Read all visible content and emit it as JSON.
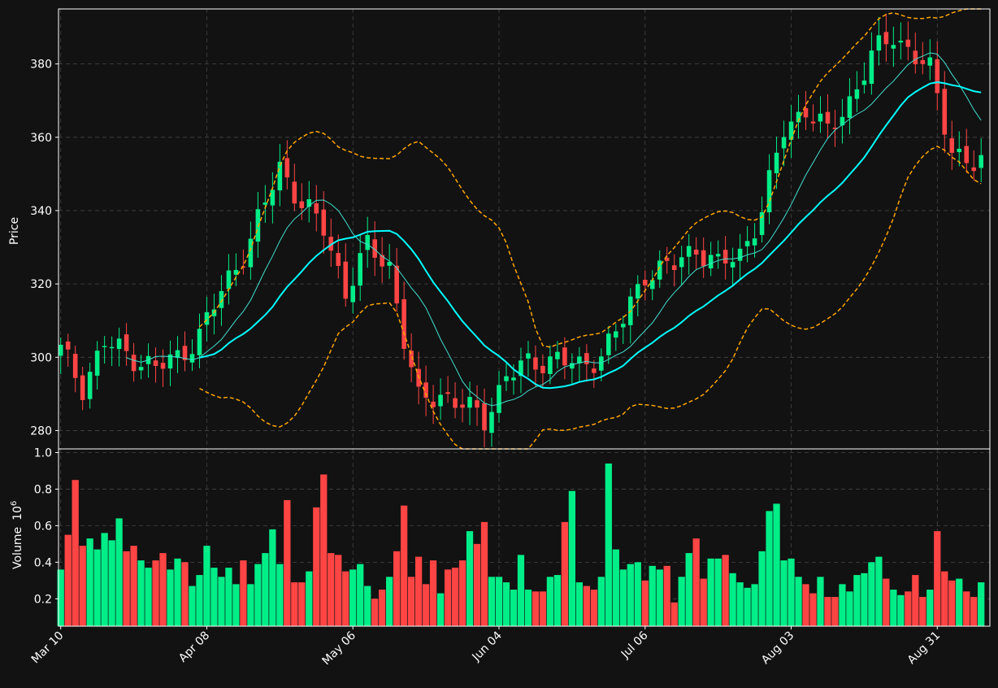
{
  "colors": {
    "background": "#121212",
    "up": "#00ee88",
    "down": "#ff4444",
    "ma_fast": "#40e0d0",
    "ma_slow": "#00ffff",
    "bollinger": "#ffa500",
    "grid": "#444444",
    "axis": "#ffffff"
  },
  "chart_data": {
    "type": "candlestick",
    "price_axis": {
      "label": "Price",
      "ylim": [
        275,
        395
      ],
      "ticks": [
        "280",
        "300",
        "320",
        "340",
        "360",
        "380"
      ]
    },
    "volume_axis": {
      "label": "Volume",
      "multiplier": "10",
      "exponent": "6",
      "ylim": [
        0.05,
        1.02
      ],
      "ticks": [
        "0.2",
        "0.4",
        "0.6",
        "0.8",
        "1.0"
      ]
    },
    "x_ticks": [
      {
        "label": "Mar 10",
        "index": 0
      },
      {
        "label": "Apr 08",
        "index": 20
      },
      {
        "label": "May 06",
        "index": 40
      },
      {
        "label": "Jun 04",
        "index": 60
      },
      {
        "label": "Jul 06",
        "index": 80
      },
      {
        "label": "Aug 03",
        "index": 100
      },
      {
        "label": "Aug 31",
        "index": 120
      }
    ],
    "grid": true,
    "candles_anchor": [
      [
        0,
        302
      ],
      [
        3,
        292
      ],
      [
        6,
        304
      ],
      [
        10,
        300
      ],
      [
        13,
        297
      ],
      [
        16,
        300
      ],
      [
        19,
        306
      ],
      [
        22,
        318
      ],
      [
        26,
        332
      ],
      [
        30,
        352
      ],
      [
        33,
        342
      ],
      [
        36,
        335
      ],
      [
        39,
        318
      ],
      [
        42,
        330
      ],
      [
        45,
        325
      ],
      [
        47,
        305
      ],
      [
        49,
        288
      ],
      [
        52,
        290
      ],
      [
        55,
        287
      ],
      [
        58,
        283
      ],
      [
        61,
        295
      ],
      [
        64,
        298
      ],
      [
        68,
        300
      ],
      [
        71,
        297
      ],
      [
        74,
        301
      ],
      [
        77,
        310
      ],
      [
        80,
        323
      ],
      [
        84,
        325
      ],
      [
        87,
        330
      ],
      [
        90,
        325
      ],
      [
        93,
        328
      ],
      [
        96,
        340
      ],
      [
        99,
        362
      ],
      [
        102,
        368
      ],
      [
        105,
        361
      ],
      [
        108,
        370
      ],
      [
        111,
        382
      ],
      [
        114,
        388
      ],
      [
        117,
        382
      ],
      [
        119,
        378
      ],
      [
        122,
        357
      ],
      [
        125,
        352
      ]
    ],
    "volume": [
      0.36,
      0.55,
      0.85,
      0.49,
      0.53,
      0.47,
      0.56,
      0.52,
      0.64,
      0.46,
      0.49,
      0.41,
      0.37,
      0.41,
      0.45,
      0.36,
      0.42,
      0.4,
      0.27,
      0.33,
      0.49,
      0.37,
      0.32,
      0.37,
      0.28,
      0.41,
      0.28,
      0.39,
      0.45,
      0.58,
      0.39,
      0.74,
      0.29,
      0.29,
      0.35,
      0.7,
      0.88,
      0.45,
      0.44,
      0.35,
      0.36,
      0.39,
      0.27,
      0.2,
      0.25,
      0.32,
      0.46,
      0.71,
      0.32,
      0.43,
      0.28,
      0.41,
      0.23,
      0.36,
      0.37,
      0.41,
      0.57,
      0.5,
      0.62,
      0.32,
      0.32,
      0.29,
      0.25,
      0.44,
      0.25,
      0.24,
      0.24,
      0.32,
      0.33,
      0.62,
      0.79,
      0.29,
      0.27,
      0.25,
      0.32,
      0.94,
      0.47,
      0.36,
      0.39,
      0.4,
      0.3,
      0.38,
      0.36,
      0.38,
      0.18,
      0.32,
      0.45,
      0.53,
      0.31,
      0.42,
      0.42,
      0.44,
      0.34,
      0.29,
      0.26,
      0.28,
      0.46,
      0.68,
      0.72,
      0.41,
      0.42,
      0.32,
      0.28,
      0.23,
      0.32,
      0.21,
      0.21,
      0.28,
      0.24,
      0.33,
      0.34,
      0.4,
      0.43,
      0.31,
      0.25,
      0.22,
      0.24,
      0.33,
      0.21,
      0.25,
      0.57,
      0.35,
      0.3,
      0.31,
      0.24,
      0.21,
      0.29
    ]
  }
}
